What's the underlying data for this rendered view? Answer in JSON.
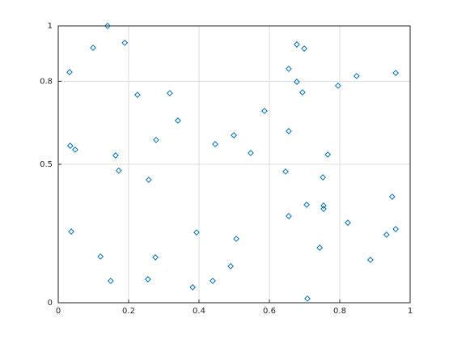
{
  "chart_data": {
    "type": "scatter",
    "marker": "diamond",
    "color": "#0072bd",
    "xlim": [
      0,
      1
    ],
    "ylim": [
      0,
      1
    ],
    "xticks": [
      0,
      0.2,
      0.4,
      0.6,
      0.8,
      1
    ],
    "yticks": [
      0,
      0.5,
      0.8,
      1
    ],
    "grid": true,
    "x": [
      0.14,
      0.099,
      0.189,
      0.032,
      0.225,
      0.317,
      0.34,
      0.278,
      0.034,
      0.048,
      0.163,
      0.172,
      0.257,
      0.446,
      0.499,
      0.547,
      0.586,
      0.678,
      0.699,
      0.655,
      0.678,
      0.694,
      0.795,
      0.848,
      0.959,
      0.655,
      0.766,
      0.646,
      0.752,
      0.949,
      0.037,
      0.706,
      0.754,
      0.754,
      0.655,
      0.823,
      0.959,
      0.933,
      0.393,
      0.506,
      0.12,
      0.276,
      0.743,
      0.887,
      0.49,
      0.149,
      0.255,
      0.382,
      0.439,
      0.708
    ],
    "values": [
      1.0,
      0.921,
      0.939,
      0.833,
      0.751,
      0.757,
      0.658,
      0.588,
      0.567,
      0.553,
      0.532,
      0.477,
      0.444,
      0.573,
      0.605,
      0.541,
      0.693,
      0.933,
      0.918,
      0.845,
      0.798,
      0.76,
      0.784,
      0.819,
      0.83,
      0.62,
      0.535,
      0.474,
      0.453,
      0.383,
      0.257,
      0.354,
      0.351,
      0.339,
      0.313,
      0.289,
      0.266,
      0.246,
      0.254,
      0.231,
      0.167,
      0.164,
      0.199,
      0.155,
      0.132,
      0.079,
      0.085,
      0.056,
      0.079,
      0.015
    ]
  }
}
